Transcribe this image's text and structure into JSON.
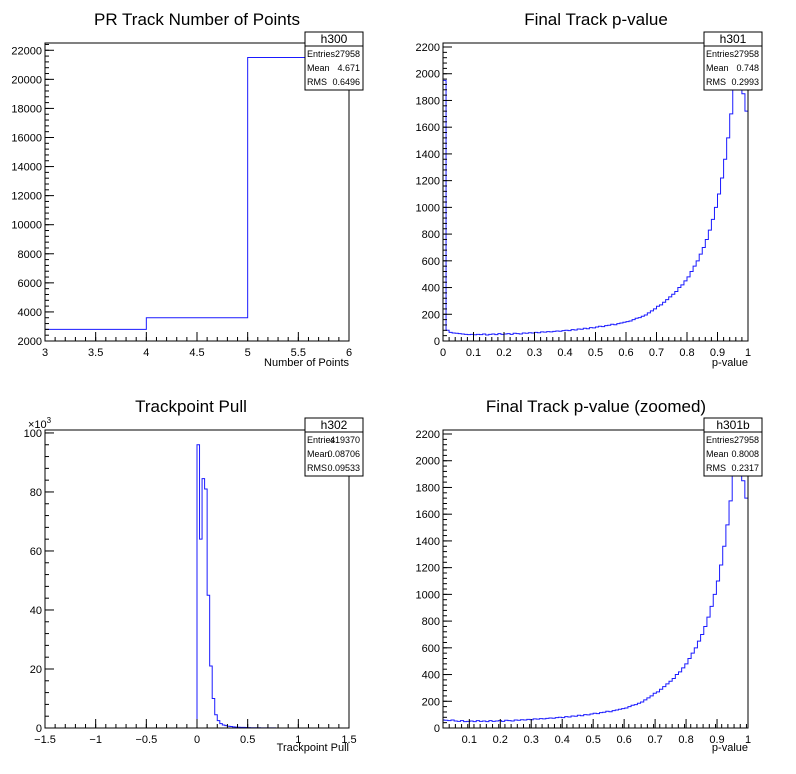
{
  "colors": {
    "histogram_line": "#1a1aff",
    "axis": "#000000",
    "background": "#ffffff"
  },
  "chart_data": [
    {
      "type": "histogram",
      "title": "PR Track Number of Points",
      "xlabel": "Number of Points",
      "ylabel": "",
      "xlim": [
        3,
        6
      ],
      "ylim": [
        2000,
        22500
      ],
      "x_ticks": [
        "3",
        "3.5",
        "4",
        "4.5",
        "5",
        "5.5",
        "6"
      ],
      "y_ticks": [
        "2000",
        "4000",
        "6000",
        "8000",
        "10000",
        "12000",
        "14000",
        "16000",
        "18000",
        "20000",
        "22000"
      ],
      "bin_edges": [
        3,
        4,
        5,
        6
      ],
      "values": [
        2800,
        3600,
        21500
      ],
      "stats": {
        "name": "h300",
        "entries": "27958",
        "mean": "4.671",
        "rms": "0.6496"
      }
    },
    {
      "type": "histogram",
      "title": "Final Track p-value",
      "xlabel": "p-value",
      "ylabel": "",
      "xlim": [
        0,
        1
      ],
      "ylim": [
        0,
        2230
      ],
      "x_ticks": [
        "0",
        "0.1",
        "0.2",
        "0.3",
        "0.4",
        "0.5",
        "0.6",
        "0.7",
        "0.8",
        "0.9",
        "1"
      ],
      "y_ticks": [
        "0",
        "200",
        "400",
        "600",
        "800",
        "1000",
        "1200",
        "1400",
        "1600",
        "1800",
        "2000",
        "2200"
      ],
      "bin_edges_range": [
        0,
        1
      ],
      "values": [
        1950,
        80,
        65,
        60,
        58,
        55,
        52,
        50,
        48,
        50,
        47,
        50,
        48,
        52,
        45,
        50,
        52,
        48,
        55,
        50,
        52,
        55,
        50,
        58,
        55,
        52,
        60,
        58,
        62,
        60,
        65,
        62,
        68,
        66,
        70,
        68,
        72,
        75,
        73,
        78,
        80,
        78,
        85,
        82,
        90,
        88,
        95,
        92,
        100,
        98,
        105,
        110,
        108,
        115,
        118,
        125,
        122,
        130,
        135,
        140,
        145,
        150,
        160,
        170,
        175,
        185,
        195,
        210,
        225,
        240,
        260,
        270,
        290,
        310,
        330,
        350,
        370,
        400,
        420,
        450,
        480,
        520,
        560,
        600,
        650,
        700,
        760,
        830,
        910,
        1000,
        1100,
        1220,
        1360,
        1520,
        1700,
        1950,
        2230,
        2230,
        1850,
        1720
      ],
      "stats": {
        "name": "h301",
        "entries": "27958",
        "mean": "0.748",
        "rms": "0.2993"
      }
    },
    {
      "type": "histogram",
      "title": "Trackpoint Pull",
      "xlabel": "Trackpoint Pull",
      "ylabel": "",
      "y_multiplier": "×10",
      "y_multiplier_exp": "3",
      "xlim": [
        -1.5,
        1.5
      ],
      "ylim": [
        0,
        101
      ],
      "x_ticks": [
        "−1.5",
        "−1",
        "−0.5",
        "0",
        "0.5",
        "1",
        "1.5"
      ],
      "y_ticks": [
        "0",
        "20",
        "40",
        "60",
        "80",
        "100"
      ],
      "bin_edges_range": [
        0,
        0.8
      ],
      "bin_width": 0.025,
      "values": [
        96,
        64,
        84.5,
        81,
        45,
        21,
        10,
        4.5,
        2.5,
        1.5,
        1,
        0.8,
        0.6,
        0.5,
        0.4,
        0.3,
        0.25,
        0.2,
        0.2,
        0.15,
        0.12,
        0.1,
        0.1,
        0.08,
        0.08,
        0.06,
        0.05,
        0.05,
        0.04,
        0.03,
        0.03,
        0.02
      ],
      "stats": {
        "name": "h302",
        "entries": "419370",
        "mean": "0.08706",
        "rms": "0.09533"
      }
    },
    {
      "type": "histogram",
      "title": "Final Track p-value (zoomed)",
      "xlabel": "p-value",
      "ylabel": "",
      "xlim": [
        0,
        1
      ],
      "ylim": [
        0,
        2230
      ],
      "x_ticks": [
        "0.1",
        "0.2",
        "0.3",
        "0.4",
        "0.5",
        "0.6",
        "0.7",
        "0.8",
        "0.9",
        "1"
      ],
      "y_ticks": [
        "0",
        "200",
        "400",
        "600",
        "800",
        "1000",
        "1200",
        "1400",
        "1600",
        "1800",
        "2000",
        "2200"
      ],
      "bin_edges_range": [
        0,
        1
      ],
      "values": [
        65,
        60,
        58,
        55,
        60,
        52,
        50,
        55,
        48,
        50,
        52,
        48,
        55,
        50,
        52,
        48,
        55,
        50,
        52,
        55,
        50,
        58,
        55,
        52,
        60,
        58,
        62,
        60,
        65,
        62,
        68,
        66,
        70,
        68,
        72,
        75,
        73,
        78,
        80,
        78,
        85,
        82,
        90,
        88,
        95,
        92,
        100,
        98,
        105,
        110,
        108,
        115,
        118,
        125,
        122,
        130,
        135,
        140,
        145,
        150,
        160,
        170,
        175,
        185,
        195,
        210,
        225,
        240,
        260,
        270,
        290,
        310,
        330,
        350,
        370,
        400,
        420,
        450,
        480,
        520,
        560,
        600,
        650,
        700,
        760,
        830,
        910,
        1000,
        1100,
        1220,
        1360,
        1520,
        1700,
        1950,
        2230,
        2230,
        1850,
        1720
      ],
      "stats": {
        "name": "h301b",
        "entries": "27958",
        "mean": "0.8008",
        "rms": "0.2317"
      }
    }
  ],
  "stats_labels": {
    "entries": "Entries",
    "mean": "Mean",
    "rms": "RMS"
  }
}
